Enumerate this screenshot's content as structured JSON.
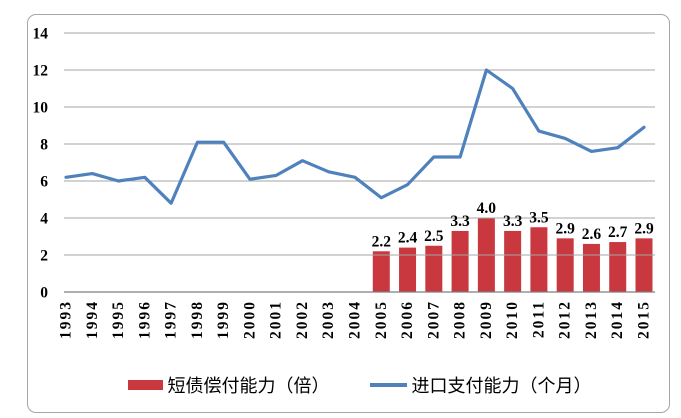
{
  "chart_data": {
    "type": "combo",
    "title": "",
    "xlabel": "",
    "ylabel": "",
    "categories": [
      "1993",
      "1994",
      "1995",
      "1996",
      "1997",
      "1998",
      "1999",
      "2000",
      "2001",
      "2002",
      "2003",
      "2004",
      "2005",
      "2006",
      "2007",
      "2008",
      "2009",
      "2010",
      "2011",
      "2012",
      "2013",
      "2014",
      "2015"
    ],
    "series": [
      {
        "name": "短债偿付能力（倍）",
        "type": "bar",
        "color": "#C8383E",
        "values": [
          null,
          null,
          null,
          null,
          null,
          null,
          null,
          null,
          null,
          null,
          null,
          null,
          2.2,
          2.4,
          2.5,
          3.3,
          4.0,
          3.3,
          3.5,
          2.9,
          2.6,
          2.7,
          2.9
        ],
        "data_labels": [
          "",
          "",
          "",
          "",
          "",
          "",
          "",
          "",
          "",
          "",
          "",
          "",
          "2.2",
          "2.4",
          "2.5",
          "3.3",
          "4.0",
          "3.3",
          "3.5",
          "2.9",
          "2.6",
          "2.7",
          "2.9"
        ]
      },
      {
        "name": "进口支付能力（个月）",
        "type": "line",
        "color": "#4F81BD",
        "values": [
          6.2,
          6.4,
          6.0,
          6.2,
          4.8,
          8.1,
          8.1,
          6.1,
          6.3,
          7.1,
          6.5,
          6.2,
          5.1,
          5.8,
          7.3,
          7.3,
          12.0,
          11.0,
          8.7,
          8.3,
          7.6,
          7.8,
          8.9
        ]
      }
    ],
    "ylim": [
      0,
      14
    ],
    "yticks": [
      "0",
      "2",
      "4",
      "6",
      "8",
      "10",
      "12",
      "14"
    ],
    "grid": true,
    "legend_position": "bottom",
    "colors": {
      "gridline": "#A6A6A6",
      "axis_line": "#7F7F7F",
      "panel_border": "#A6A6A6",
      "text": "#000000",
      "background": "#FFFFFF"
    }
  }
}
